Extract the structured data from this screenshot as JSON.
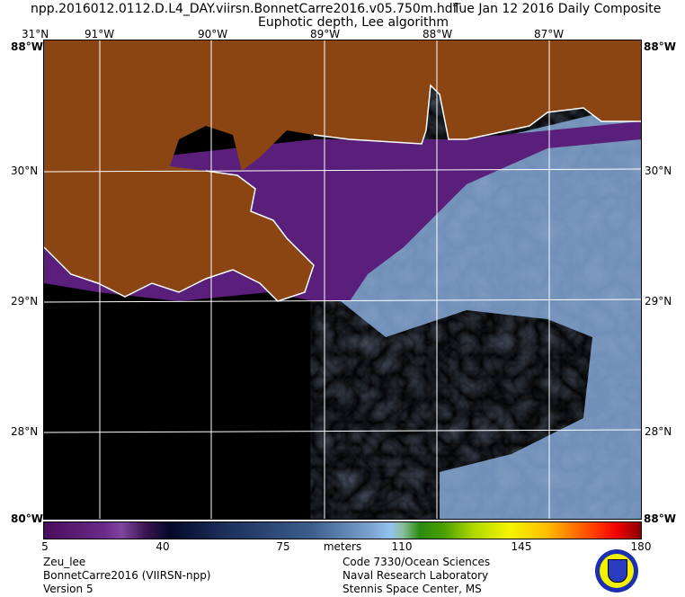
{
  "header": {
    "filename": "npp.2016012.0112.D.L4_DAY.viirsn.BonnetCarre2016.v05.750m.hdf",
    "date": "Tue Jan 12 2016 Daily Composite",
    "subtitle": "Euphotic depth, Lee algorithm"
  },
  "map": {
    "lon_labels": [
      "91°W",
      "90°W",
      "89°W",
      "88°W",
      "87°W"
    ],
    "lat_labels": [
      "31°N",
      "30°N",
      "29°N",
      "28°N"
    ],
    "corner_top_left": "31°N",
    "corner_lon_left": "88°W",
    "corner_bottom_left": "80°W",
    "corner_right": "88°W"
  },
  "colorbar": {
    "ticks": [
      "5",
      "40",
      "75",
      "110",
      "145",
      "180"
    ],
    "units": "meters",
    "range": [
      5,
      180
    ]
  },
  "footer": {
    "left": [
      "Zeu_lee",
      "BonnetCarre2016 (VIIRSN-npp)",
      "Version 5"
    ],
    "right": [
      "Code 7330/Ocean Sciences",
      "Naval Research Laboratory",
      "Stennis Space Center, MS"
    ]
  },
  "colors": {
    "land": "#8b4513",
    "coastal": "#5a1f7a",
    "offshore": "#6f8fb8",
    "nodata": "#000000"
  }
}
